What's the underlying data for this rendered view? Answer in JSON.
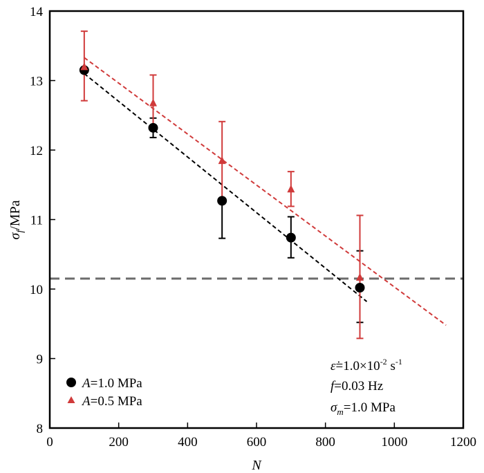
{
  "chart_data": {
    "type": "scatter",
    "xlabel": "N",
    "ylabel_symbol": "σ",
    "ylabel_sub": "f",
    "ylabel_unit": "/MPa",
    "xlim": [
      0,
      1200
    ],
    "ylim": [
      8,
      14
    ],
    "xticks": [
      "0",
      "200",
      "400",
      "600",
      "800",
      "1000",
      "1200"
    ],
    "yticks": [
      "8",
      "9",
      "10",
      "11",
      "12",
      "13",
      "14"
    ],
    "grid": false,
    "legend_position": "bottom-left",
    "series": [
      {
        "name_symbol": "A",
        "name_value": "=1.0 MPa",
        "marker": "circle",
        "color": "#000000",
        "points": [
          {
            "x": 100,
            "y": 13.15,
            "err_low": 13.15,
            "err_high": 13.15
          },
          {
            "x": 300,
            "y": 12.32,
            "err_low": 12.18,
            "err_high": 12.46
          },
          {
            "x": 500,
            "y": 11.27,
            "err_low": 10.73,
            "err_high": 11.27
          },
          {
            "x": 700,
            "y": 10.74,
            "err_low": 10.45,
            "err_high": 11.04
          },
          {
            "x": 900,
            "y": 10.02,
            "err_low": 9.52,
            "err_high": 10.55
          }
        ],
        "fit": {
          "x": [
            100,
            920
          ],
          "y": [
            13.1,
            9.82
          ],
          "color": "#000000"
        }
      },
      {
        "name_symbol": "A",
        "name_value": "=0.5 MPa",
        "marker": "triangle",
        "color": "#d03a3a",
        "points": [
          {
            "x": 100,
            "y": 13.2,
            "err_low": 12.71,
            "err_high": 13.71
          },
          {
            "x": 300,
            "y": 12.68,
            "err_low": 12.29,
            "err_high": 13.08
          },
          {
            "x": 500,
            "y": 11.85,
            "err_low": 11.29,
            "err_high": 12.41
          },
          {
            "x": 700,
            "y": 11.44,
            "err_low": 11.19,
            "err_high": 11.69
          },
          {
            "x": 900,
            "y": 10.17,
            "err_low": 9.29,
            "err_high": 11.06
          }
        ],
        "fit": {
          "x": [
            100,
            1150
          ],
          "y": [
            13.33,
            9.48
          ],
          "color": "#d03a3a"
        }
      }
    ],
    "hline": {
      "y": 10.15,
      "color": "#6b6b6b"
    },
    "annotations": {
      "line1_symbol": "ε̇",
      "line1_value": "=1.0×10",
      "line1_exp": "-2",
      "line1_unit": " s",
      "line1_unit_exp": "-1",
      "line2_symbol": "f",
      "line2_value": "=0.03 Hz",
      "line3_symbol": "σ",
      "line3_sub": "m",
      "line3_value": "=1.0 MPa"
    }
  }
}
